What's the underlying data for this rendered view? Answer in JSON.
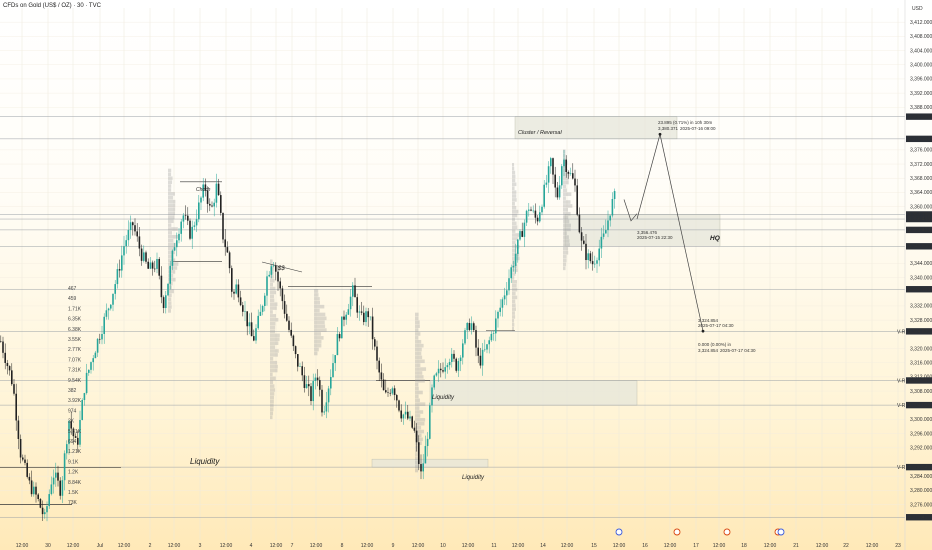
{
  "header": {
    "title": "CFDs on Gold (US$ / OZ) · 30 · TVC",
    "currency": "USD"
  },
  "colors": {
    "up": "#26a69a",
    "down": "#222222",
    "zone": "#e6e6da",
    "line": "#555555"
  },
  "chart_data": {
    "type": "candlestick",
    "ylim": [
      3266,
      3416
    ],
    "y_ticks": [
      "3,412.000",
      "3,408.000",
      "3,404.000",
      "3,400.000",
      "3,396.000",
      "3,392.000",
      "3,388.000",
      "3,376.000",
      "3,372.000",
      "3,368.000",
      "3,364.000",
      "3,360.000",
      "3,344.000",
      "3,340.000",
      "3,332.000",
      "3,328.000",
      "3,320.000",
      "3,316.000",
      "3,312.000",
      "3,308.000",
      "3,300.000",
      "3,296.000",
      "3,292.000",
      "3,284.000",
      "3,280.000",
      "3,276.000"
    ],
    "x_ticks": [
      "12:00",
      "30",
      "12:00",
      "Jul",
      "12:00",
      "2",
      "12:00",
      "3",
      "12:00",
      "4",
      "12:00",
      "7",
      "12:00",
      "8",
      "12:00",
      "9",
      "12:00",
      "10",
      "12:00",
      "11",
      "12:00",
      "14",
      "12:00",
      "15",
      "12:00",
      "16",
      "12:00",
      "17",
      "12:00",
      "18",
      "12:00",
      "21",
      "12:00",
      "22",
      "12:00",
      "23"
    ],
    "price_labels": [
      {
        "value": 3385.366,
        "text": "3,385.366"
      },
      {
        "value": 3379.102,
        "text": "3,379.102"
      },
      {
        "value": 3357.79,
        "text": "3,357.790"
      },
      {
        "value": 3356.495,
        "text": "3,356.495"
      },
      {
        "value": 3353.433,
        "text": "3,353.433"
      },
      {
        "value": 3348.81,
        "text": "3,348.810"
      },
      {
        "value": 3336.703,
        "text": "3,336.703"
      },
      {
        "value": 3324.83,
        "text": "3,324.830"
      },
      {
        "value": 3310.982,
        "text": "3,310.982"
      },
      {
        "value": 3304.035,
        "text": "3,304.035"
      },
      {
        "value": 3286.549,
        "text": "3,286.549"
      },
      {
        "value": 3272.417,
        "text": "3,272.417"
      }
    ],
    "vr_labels": [
      {
        "value": 3324.83,
        "text": "V-R"
      },
      {
        "value": 3310.982,
        "text": "V-R"
      },
      {
        "value": 3304.035,
        "text": "V-R"
      },
      {
        "value": 3286.549,
        "text": "V-R"
      }
    ],
    "annotations": {
      "choch": "Choch",
      "ss": "$$",
      "liquidity_left": "Liquidity",
      "liquidity_mid": "Liquidity",
      "liquidity_bottom": "Liquidity",
      "cluster": "Cluster / Reversal",
      "hq": "HQ"
    },
    "projection": {
      "up_label": "23.895 (0.71%) in 10h 30m",
      "up_price": "3,380.371",
      "up_date": "2025-07-16 09:00",
      "start_price": "3,356.476",
      "start_date": "2025-07-15 22:30",
      "end_price": "3,324.854",
      "end_date": "2025-07-17 04:30",
      "zero_label": "0.000 (0.00%) in",
      "zero_price": "3,324.854",
      "zero_date": "2025-07-17 04:30"
    },
    "volume_labels": [
      "467",
      "459",
      "1.71K",
      "6.35K",
      "6.38K",
      "3.55K",
      "2.77K",
      "7.07K",
      "7.31K",
      "9.54K",
      "382",
      "3.92K",
      "974",
      "2K",
      "5.31K",
      "694",
      "1.21K",
      "9.1K",
      "1.2K",
      "8.84K",
      "1.5K",
      "73K"
    ]
  }
}
